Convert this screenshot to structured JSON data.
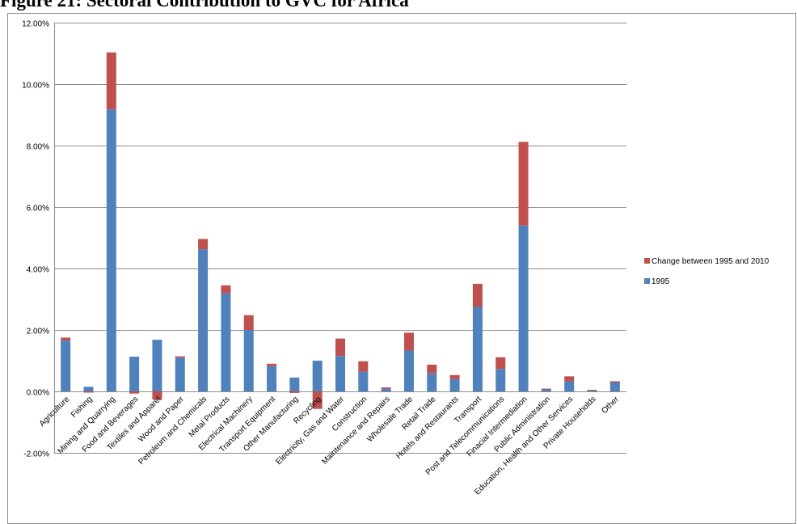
{
  "figure_title": "Figure 21: Sectoral Contribution to GVC for Africa",
  "chart_data": {
    "type": "bar",
    "stacked": true,
    "title": "",
    "xlabel": "",
    "ylabel": "",
    "ylim": [
      -0.02,
      0.12
    ],
    "yticks": [
      -0.02,
      0.0,
      0.02,
      0.04,
      0.06,
      0.08,
      0.1,
      0.12
    ],
    "ytick_labels": [
      "-2.00%",
      "0.00%",
      "2.00%",
      "4.00%",
      "6.00%",
      "8.00%",
      "10.00%",
      "12.00%"
    ],
    "grid": "horizontal",
    "legend": "right",
    "categories": [
      "Agriculture",
      "Fishing",
      "Mining and Quarrying",
      "Food and Beverages",
      "Textiles and Apparel",
      "Wood and Paper",
      "Petroleum and Chemicals",
      "Metal Products",
      "Electrical Machinery",
      "Transport Equipment",
      "Other Manufacturing",
      "Recycling",
      "Electricity, Gas and Water",
      "Construction",
      "Maintenance and Repairs",
      "Wholesale Trade",
      "Retail Trade",
      "Hotels and Restaurants",
      "Transport",
      "Post and Telecommunications",
      "Finacial Intermediation",
      "Public Administration",
      "Education, Health and Other Services",
      "Private Households",
      "Other"
    ],
    "series": [
      {
        "name": "1995",
        "color": "#4f81bd",
        "values": [
          0.0165,
          0.0015,
          0.0918,
          0.0113,
          0.0168,
          0.011,
          0.0463,
          0.032,
          0.02,
          0.0082,
          0.0045,
          0.01,
          0.0115,
          0.0064,
          0.0009,
          0.0133,
          0.006,
          0.004,
          0.0275,
          0.0073,
          0.054,
          0.0008,
          0.0033,
          0.0004,
          0.0029
        ]
      },
      {
        "name": "Change between 1995 and 2010",
        "color": "#c0504d",
        "values": [
          0.001,
          -0.0004,
          0.0185,
          -0.0007,
          -0.0027,
          0.0004,
          0.0033,
          0.0025,
          0.0048,
          0.0008,
          -0.0005,
          -0.0057,
          0.0057,
          0.0034,
          0.0004,
          0.0058,
          0.0027,
          0.0013,
          0.0075,
          0.0038,
          0.0272,
          0.0001,
          0.0016,
          0.0001,
          0.0004
        ]
      }
    ]
  }
}
